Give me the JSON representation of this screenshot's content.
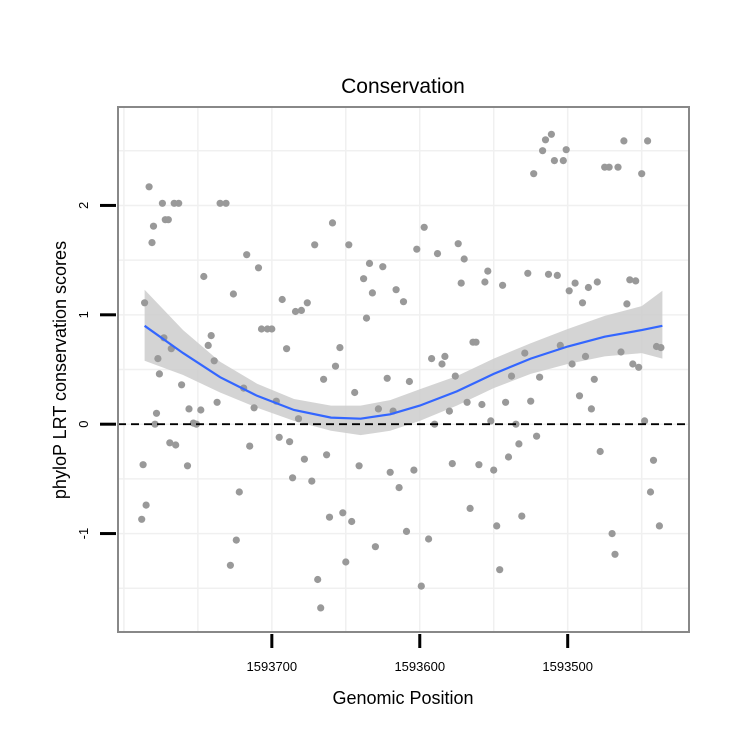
{
  "chart_data": {
    "type": "scatter",
    "title": "Conservation",
    "xlabel": "Genomic Position",
    "ylabel": "phyloP LRT conservation scores",
    "x_reversed": true,
    "xlim": [
      1593418,
      1593804
    ],
    "ylim": [
      -1.9,
      2.9
    ],
    "x_ticks": [
      1593700,
      1593600,
      1593500
    ],
    "y_ticks": [
      -1,
      0,
      1,
      2
    ],
    "x_tick_labels": [
      "1593700",
      "1593600",
      "1593500"
    ],
    "y_tick_labels": [
      "-1",
      "0",
      "1",
      "2"
    ],
    "grid": true,
    "reference_line": {
      "y": 0,
      "style": "dashed"
    },
    "colors": {
      "points": "#999999",
      "smooth": "#3366ff",
      "ribbon": "#cccccc",
      "frame": "#888888",
      "grid": "#f0f0f0"
    },
    "smooth": {
      "x": [
        1593786,
        1593760,
        1593735,
        1593710,
        1593685,
        1593660,
        1593640,
        1593620,
        1593600,
        1593575,
        1593550,
        1593525,
        1593500,
        1593475,
        1593450,
        1593436
      ],
      "y": [
        0.9,
        0.65,
        0.43,
        0.26,
        0.13,
        0.06,
        0.05,
        0.09,
        0.17,
        0.3,
        0.46,
        0.6,
        0.71,
        0.8,
        0.86,
        0.9
      ],
      "lower": [
        0.58,
        0.45,
        0.29,
        0.15,
        0.03,
        -0.06,
        -0.1,
        -0.06,
        0.03,
        0.17,
        0.33,
        0.46,
        0.55,
        0.62,
        0.65,
        0.6
      ],
      "upper": [
        1.23,
        0.86,
        0.57,
        0.37,
        0.23,
        0.17,
        0.17,
        0.22,
        0.32,
        0.44,
        0.6,
        0.74,
        0.87,
        0.99,
        1.08,
        1.22
      ]
    },
    "points": [
      {
        "x": 1593786,
        "y": 1.11
      },
      {
        "x": 1593787,
        "y": -0.37
      },
      {
        "x": 1593788,
        "y": -0.87
      },
      {
        "x": 1593785,
        "y": -0.74
      },
      {
        "x": 1593783,
        "y": 2.17
      },
      {
        "x": 1593781,
        "y": 1.66
      },
      {
        "x": 1593780,
        "y": 1.81
      },
      {
        "x": 1593777,
        "y": 0.6
      },
      {
        "x": 1593776,
        "y": 0.46
      },
      {
        "x": 1593774,
        "y": 2.02
      },
      {
        "x": 1593772,
        "y": 1.87
      },
      {
        "x": 1593770,
        "y": 1.87
      },
      {
        "x": 1593766,
        "y": 2.02
      },
      {
        "x": 1593763,
        "y": 2.02
      },
      {
        "x": 1593778,
        "y": 0.1
      },
      {
        "x": 1593779,
        "y": 0.0
      },
      {
        "x": 1593773,
        "y": 0.79
      },
      {
        "x": 1593768,
        "y": 0.69
      },
      {
        "x": 1593769,
        "y": -0.17
      },
      {
        "x": 1593765,
        "y": -0.19
      },
      {
        "x": 1593761,
        "y": 0.36
      },
      {
        "x": 1593757,
        "y": -0.38
      },
      {
        "x": 1593756,
        "y": 0.14
      },
      {
        "x": 1593753,
        "y": 0.01
      },
      {
        "x": 1593751,
        "y": 0.0
      },
      {
        "x": 1593748,
        "y": 0.13
      },
      {
        "x": 1593746,
        "y": 1.35
      },
      {
        "x": 1593743,
        "y": 0.72
      },
      {
        "x": 1593741,
        "y": 0.81
      },
      {
        "x": 1593739,
        "y": 0.58
      },
      {
        "x": 1593737,
        "y": 0.2
      },
      {
        "x": 1593735,
        "y": 2.02
      },
      {
        "x": 1593731,
        "y": 2.02
      },
      {
        "x": 1593728,
        "y": -1.29
      },
      {
        "x": 1593726,
        "y": 1.19
      },
      {
        "x": 1593724,
        "y": -1.06
      },
      {
        "x": 1593722,
        "y": -0.62
      },
      {
        "x": 1593719,
        "y": 0.33
      },
      {
        "x": 1593717,
        "y": 1.55
      },
      {
        "x": 1593715,
        "y": -0.2
      },
      {
        "x": 1593712,
        "y": 0.15
      },
      {
        "x": 1593709,
        "y": 1.43
      },
      {
        "x": 1593707,
        "y": 0.87
      },
      {
        "x": 1593703,
        "y": 0.87
      },
      {
        "x": 1593700,
        "y": 0.87
      },
      {
        "x": 1593697,
        "y": 0.21
      },
      {
        "x": 1593695,
        "y": -0.12
      },
      {
        "x": 1593693,
        "y": 1.14
      },
      {
        "x": 1593690,
        "y": 0.69
      },
      {
        "x": 1593688,
        "y": -0.16
      },
      {
        "x": 1593686,
        "y": -0.49
      },
      {
        "x": 1593684,
        "y": 1.03
      },
      {
        "x": 1593682,
        "y": 0.05
      },
      {
        "x": 1593680,
        "y": 1.04
      },
      {
        "x": 1593678,
        "y": -0.32
      },
      {
        "x": 1593676,
        "y": 1.11
      },
      {
        "x": 1593673,
        "y": -0.52
      },
      {
        "x": 1593671,
        "y": 1.64
      },
      {
        "x": 1593669,
        "y": -1.42
      },
      {
        "x": 1593667,
        "y": -1.68
      },
      {
        "x": 1593665,
        "y": 0.41
      },
      {
        "x": 1593663,
        "y": -0.28
      },
      {
        "x": 1593661,
        "y": -0.85
      },
      {
        "x": 1593659,
        "y": 1.84
      },
      {
        "x": 1593657,
        "y": 0.53
      },
      {
        "x": 1593654,
        "y": 0.7
      },
      {
        "x": 1593652,
        "y": -0.81
      },
      {
        "x": 1593650,
        "y": -1.26
      },
      {
        "x": 1593648,
        "y": 1.64
      },
      {
        "x": 1593646,
        "y": -0.89
      },
      {
        "x": 1593644,
        "y": 0.29
      },
      {
        "x": 1593641,
        "y": -0.38
      },
      {
        "x": 1593638,
        "y": 1.33
      },
      {
        "x": 1593636,
        "y": 0.97
      },
      {
        "x": 1593634,
        "y": 1.47
      },
      {
        "x": 1593632,
        "y": 1.2
      },
      {
        "x": 1593630,
        "y": -1.12
      },
      {
        "x": 1593628,
        "y": 0.14
      },
      {
        "x": 1593625,
        "y": 1.44
      },
      {
        "x": 1593622,
        "y": 0.42
      },
      {
        "x": 1593620,
        "y": -0.44
      },
      {
        "x": 1593618,
        "y": 0.12
      },
      {
        "x": 1593616,
        "y": 1.23
      },
      {
        "x": 1593614,
        "y": -0.58
      },
      {
        "x": 1593611,
        "y": 1.12
      },
      {
        "x": 1593609,
        "y": -0.98
      },
      {
        "x": 1593607,
        "y": 0.39
      },
      {
        "x": 1593604,
        "y": -0.42
      },
      {
        "x": 1593602,
        "y": 1.6
      },
      {
        "x": 1593599,
        "y": -1.48
      },
      {
        "x": 1593597,
        "y": 1.8
      },
      {
        "x": 1593594,
        "y": -1.05
      },
      {
        "x": 1593592,
        "y": 0.6
      },
      {
        "x": 1593590,
        "y": 0.0
      },
      {
        "x": 1593588,
        "y": 1.56
      },
      {
        "x": 1593585,
        "y": 0.55
      },
      {
        "x": 1593583,
        "y": 0.62
      },
      {
        "x": 1593580,
        "y": 0.12
      },
      {
        "x": 1593578,
        "y": -0.36
      },
      {
        "x": 1593576,
        "y": 0.44
      },
      {
        "x": 1593574,
        "y": 1.65
      },
      {
        "x": 1593572,
        "y": 1.29
      },
      {
        "x": 1593570,
        "y": 1.51
      },
      {
        "x": 1593568,
        "y": 0.2
      },
      {
        "x": 1593566,
        "y": -0.77
      },
      {
        "x": 1593564,
        "y": 0.75
      },
      {
        "x": 1593562,
        "y": 0.75
      },
      {
        "x": 1593560,
        "y": -0.37
      },
      {
        "x": 1593558,
        "y": 0.18
      },
      {
        "x": 1593556,
        "y": 1.3
      },
      {
        "x": 1593554,
        "y": 1.4
      },
      {
        "x": 1593552,
        "y": 0.03
      },
      {
        "x": 1593550,
        "y": -0.42
      },
      {
        "x": 1593548,
        "y": -0.93
      },
      {
        "x": 1593546,
        "y": -1.33
      },
      {
        "x": 1593544,
        "y": 1.27
      },
      {
        "x": 1593542,
        "y": 0.2
      },
      {
        "x": 1593540,
        "y": -0.3
      },
      {
        "x": 1593538,
        "y": 0.44
      },
      {
        "x": 1593535,
        "y": 0.0
      },
      {
        "x": 1593533,
        "y": -0.18
      },
      {
        "x": 1593531,
        "y": -0.84
      },
      {
        "x": 1593529,
        "y": 0.65
      },
      {
        "x": 1593527,
        "y": 1.38
      },
      {
        "x": 1593525,
        "y": 0.21
      },
      {
        "x": 1593523,
        "y": 2.29
      },
      {
        "x": 1593521,
        "y": -0.11
      },
      {
        "x": 1593519,
        "y": 0.43
      },
      {
        "x": 1593517,
        "y": 2.5
      },
      {
        "x": 1593515,
        "y": 2.6
      },
      {
        "x": 1593513,
        "y": 1.37
      },
      {
        "x": 1593511,
        "y": 2.65
      },
      {
        "x": 1593509,
        "y": 2.41
      },
      {
        "x": 1593507,
        "y": 1.36
      },
      {
        "x": 1593505,
        "y": 0.72
      },
      {
        "x": 1593503,
        "y": 2.41
      },
      {
        "x": 1593501,
        "y": 2.51
      },
      {
        "x": 1593499,
        "y": 1.22
      },
      {
        "x": 1593497,
        "y": 0.55
      },
      {
        "x": 1593495,
        "y": 1.29
      },
      {
        "x": 1593492,
        "y": 0.26
      },
      {
        "x": 1593490,
        "y": 1.11
      },
      {
        "x": 1593488,
        "y": 0.62
      },
      {
        "x": 1593486,
        "y": 1.25
      },
      {
        "x": 1593484,
        "y": 0.14
      },
      {
        "x": 1593482,
        "y": 0.41
      },
      {
        "x": 1593480,
        "y": 1.3
      },
      {
        "x": 1593478,
        "y": -0.25
      },
      {
        "x": 1593475,
        "y": 2.35
      },
      {
        "x": 1593472,
        "y": 2.35
      },
      {
        "x": 1593470,
        "y": -1.0
      },
      {
        "x": 1593468,
        "y": -1.19
      },
      {
        "x": 1593466,
        "y": 2.35
      },
      {
        "x": 1593464,
        "y": 0.66
      },
      {
        "x": 1593462,
        "y": 2.59
      },
      {
        "x": 1593460,
        "y": 1.1
      },
      {
        "x": 1593458,
        "y": 1.32
      },
      {
        "x": 1593456,
        "y": 0.55
      },
      {
        "x": 1593454,
        "y": 1.31
      },
      {
        "x": 1593452,
        "y": 0.52
      },
      {
        "x": 1593450,
        "y": 2.29
      },
      {
        "x": 1593448,
        "y": 0.03
      },
      {
        "x": 1593446,
        "y": 2.59
      },
      {
        "x": 1593444,
        "y": -0.62
      },
      {
        "x": 1593442,
        "y": -0.33
      },
      {
        "x": 1593440,
        "y": 0.71
      },
      {
        "x": 1593438,
        "y": -0.93
      },
      {
        "x": 1593437,
        "y": 0.7
      }
    ]
  }
}
